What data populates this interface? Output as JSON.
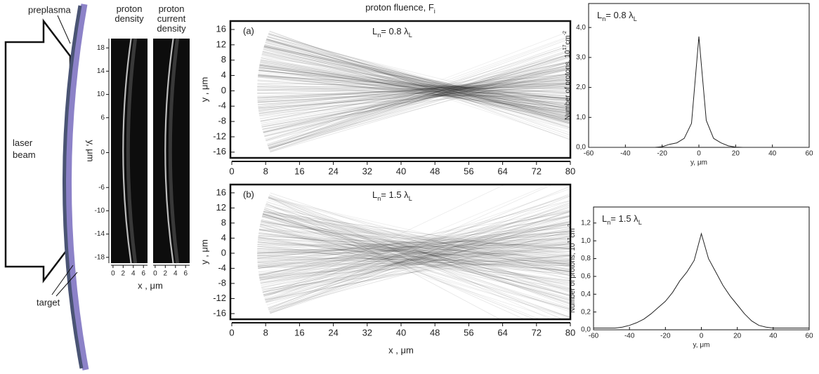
{
  "diagram": {
    "labels": {
      "preplasma": "preplasma",
      "laser_beam": [
        "laser",
        "beam"
      ],
      "target": "target"
    }
  },
  "chart_data": [
    {
      "type": "image",
      "panels": [
        {
          "title": [
            "proton",
            "density"
          ]
        },
        {
          "title": [
            "proton",
            "current",
            "density"
          ]
        }
      ],
      "ylabel": "y, μm",
      "xlabel": "x , μm",
      "ylim": [
        -19,
        19.6
      ],
      "yticks": [
        -18,
        -14,
        -10,
        -6,
        0,
        6,
        10,
        14,
        18
      ],
      "xlim": [
        -0.4,
        6.8
      ],
      "xticks": [
        0,
        2,
        4,
        6
      ]
    },
    {
      "type": "image",
      "title": [
        "proton fluence, F",
        "i"
      ],
      "panels": [
        {
          "label": "(a)",
          "annotation": [
            "L",
            "n",
            "= 0.8 λ",
            "L"
          ]
        },
        {
          "label": "(b)",
          "annotation": [
            "L",
            "n",
            "= 1.5 λ",
            "L"
          ]
        }
      ],
      "ylabel": "y , μm",
      "xlabel": "x , μm",
      "xlim": [
        0,
        80
      ],
      "xticks": [
        0,
        8,
        16,
        24,
        32,
        40,
        48,
        56,
        64,
        72,
        80
      ],
      "ylim": [
        -17.5,
        18.2
      ],
      "yticks": [
        -16,
        -12,
        -8,
        -4,
        0,
        4,
        8,
        12,
        16
      ]
    },
    {
      "type": "line",
      "annotation": [
        "L",
        "n",
        "= 0.8 λ",
        "L"
      ],
      "ylabel": [
        "Number of protons, 10",
        "17",
        "cm",
        "-2"
      ],
      "xlabel": "y, μm",
      "x": [
        -60,
        -56,
        -52,
        -48,
        -44,
        -40,
        -36,
        -32,
        -28,
        -24,
        -20,
        -16,
        -12,
        -8,
        -4,
        0,
        4,
        8,
        12,
        16,
        20,
        24,
        28,
        32,
        36,
        40,
        44,
        48,
        52,
        56,
        60
      ],
      "series": [
        {
          "color": "#222222",
          "values": [
            0,
            0,
            0,
            0,
            0,
            0,
            0,
            0,
            0,
            0,
            0.02,
            0.1,
            0.15,
            0.3,
            0.8,
            3.7,
            0.9,
            0.3,
            0.15,
            0.05,
            0.01,
            0,
            0,
            0,
            0,
            0,
            0,
            0,
            0,
            0,
            0
          ]
        }
      ],
      "xlim": [
        -60,
        60
      ],
      "xticks": [
        -60,
        -40,
        -20,
        0,
        20,
        40,
        60
      ],
      "ylim": [
        0,
        4.8
      ],
      "yticks": [
        {
          "value": 0,
          "label": "0,0"
        },
        {
          "value": 1,
          "label": "1,0"
        },
        {
          "value": 2,
          "label": "2,0"
        },
        {
          "value": 3,
          "label": "3,0"
        },
        {
          "value": 4,
          "label": "4,0"
        }
      ]
    },
    {
      "type": "line",
      "annotation": [
        "L",
        "n",
        "= 1.5 λ",
        "L"
      ],
      "ylabel": [
        "Number of protons, 10",
        "17",
        "cm",
        "-2"
      ],
      "xlabel": "y, μm",
      "x": [
        -60,
        -56,
        -52,
        -48,
        -44,
        -40,
        -36,
        -32,
        -28,
        -24,
        -20,
        -16,
        -12,
        -8,
        -4,
        0,
        4,
        8,
        12,
        16,
        20,
        24,
        28,
        32,
        36,
        40,
        44,
        48,
        52,
        56,
        60
      ],
      "series": [
        {
          "color": "#222222",
          "values": [
            0.02,
            0.02,
            0.02,
            0.02,
            0.03,
            0.05,
            0.08,
            0.12,
            0.18,
            0.25,
            0.32,
            0.42,
            0.55,
            0.65,
            0.78,
            1.08,
            0.8,
            0.65,
            0.5,
            0.38,
            0.28,
            0.18,
            0.1,
            0.05,
            0.03,
            0.02,
            0.02,
            0.02,
            0.02,
            0.02,
            0.02
          ]
        }
      ],
      "xlim": [
        -60,
        60
      ],
      "xticks": [
        -60,
        -40,
        -20,
        0,
        20,
        40,
        60
      ],
      "ylim": [
        0,
        1.38
      ],
      "yticks": [
        {
          "value": 0,
          "label": "0,0"
        },
        {
          "value": 0.2,
          "label": "0,2"
        },
        {
          "value": 0.4,
          "label": "0,4"
        },
        {
          "value": 0.6,
          "label": "0,6"
        },
        {
          "value": 0.8,
          "label": "0,8"
        },
        {
          "value": 1,
          "label": "1,0"
        },
        {
          "value": 1.2,
          "label": "1,2"
        }
      ]
    }
  ]
}
